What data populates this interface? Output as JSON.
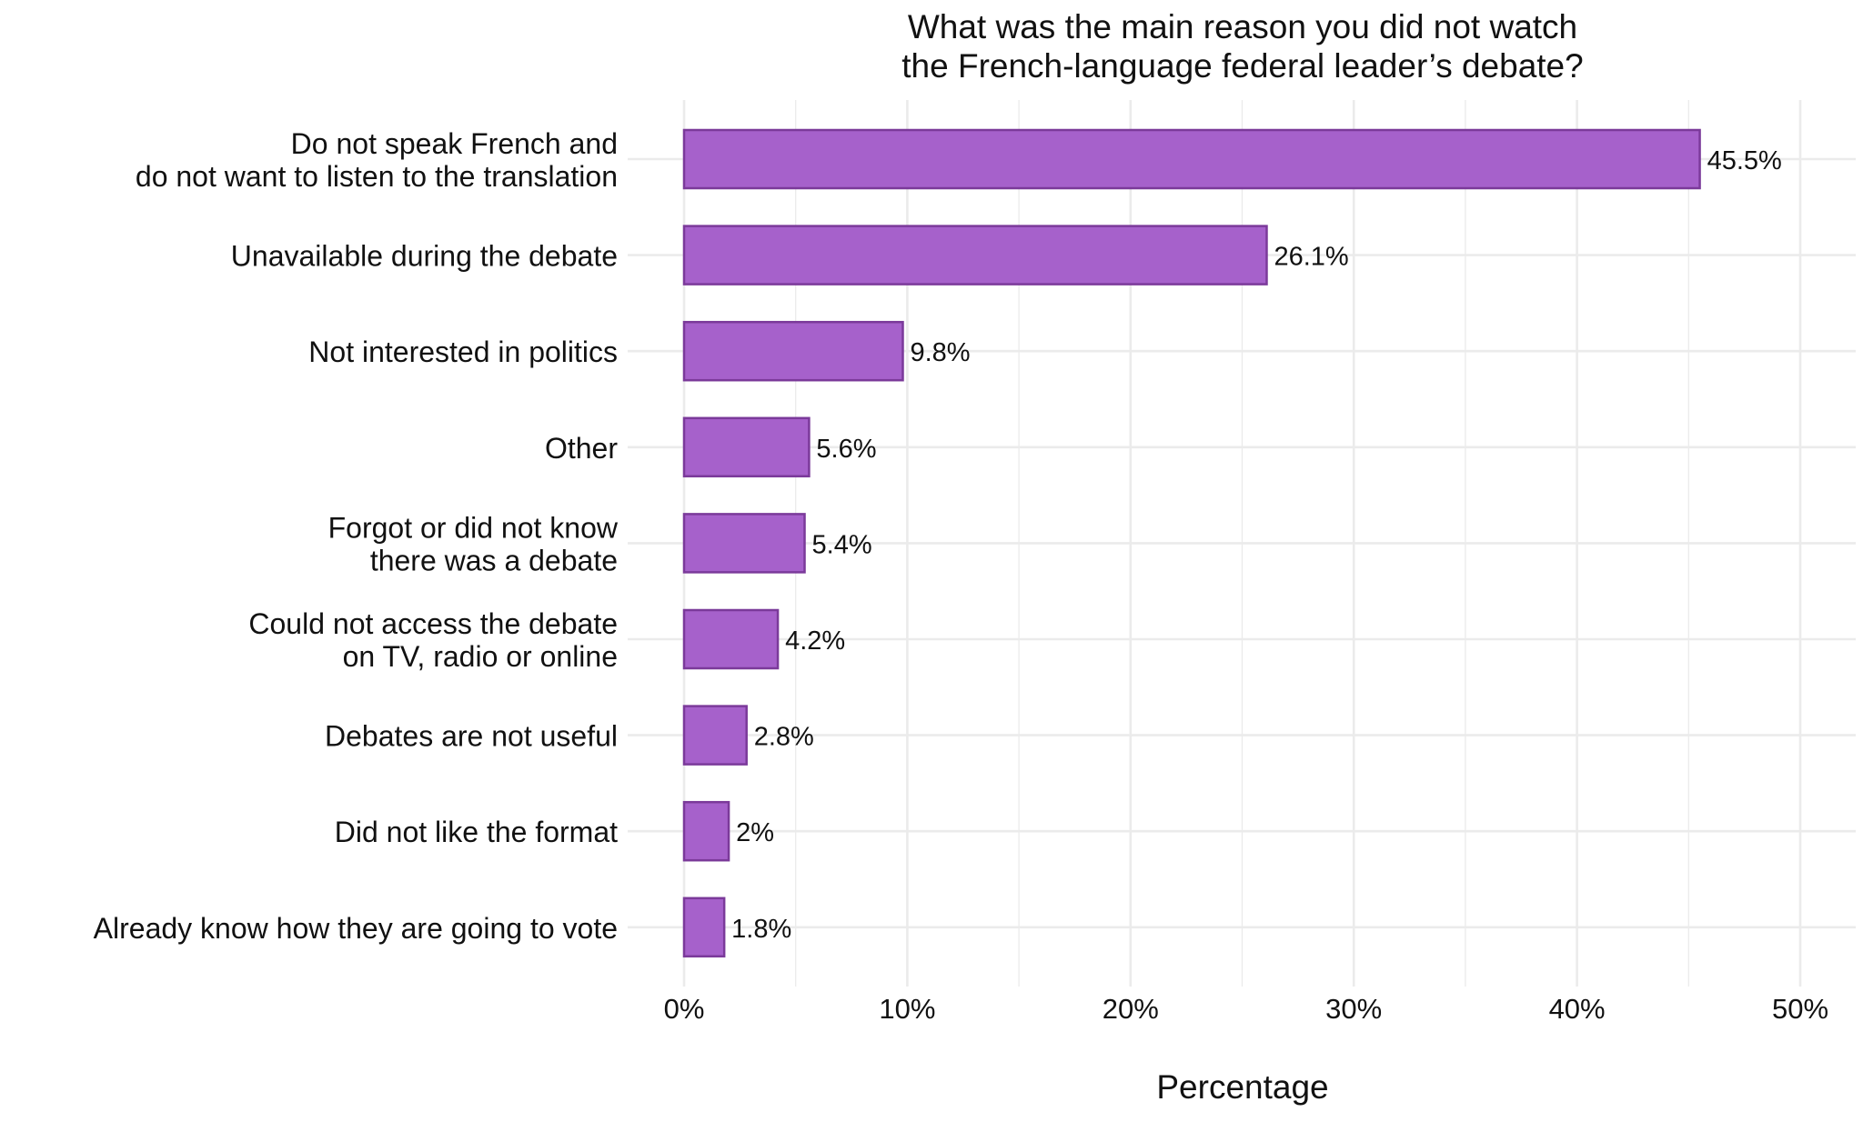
{
  "chart_data": {
    "type": "bar",
    "orientation": "horizontal",
    "title": [
      "What was the main reason you did not watch",
      "the French-language federal leader’s debate?"
    ],
    "xlabel": "Percentage",
    "ylabel": "",
    "xlim": [
      0,
      52
    ],
    "x_ticks": [
      0,
      10,
      20,
      30,
      40,
      50
    ],
    "x_tick_labels": [
      "0%",
      "10%",
      "20%",
      "30%",
      "40%",
      "50%"
    ],
    "grid": true,
    "categories": [
      [
        "Do not speak French and",
        "do not want to listen to the translation"
      ],
      [
        "Unavailable during the debate"
      ],
      [
        "Not interested in politics"
      ],
      [
        "Other"
      ],
      [
        "Forgot or did not know",
        "there was a debate"
      ],
      [
        "Could not access the debate",
        "on TV, radio or online"
      ],
      [
        "Debates are not useful"
      ],
      [
        "Did not like the format"
      ],
      [
        "Already know how they are going to vote"
      ]
    ],
    "values": [
      45.5,
      26.1,
      9.8,
      5.6,
      5.4,
      4.2,
      2.8,
      2,
      1.8
    ],
    "data_labels": [
      "45.5%",
      "26.1%",
      "9.8%",
      "5.6%",
      "5.4%",
      "4.2%",
      "2.8%",
      "2%",
      "1.8%"
    ],
    "colors": {
      "bar_fill": "#A661CB",
      "bar_stroke": "#7B3A9A",
      "grid": "#EBEBEB"
    }
  }
}
